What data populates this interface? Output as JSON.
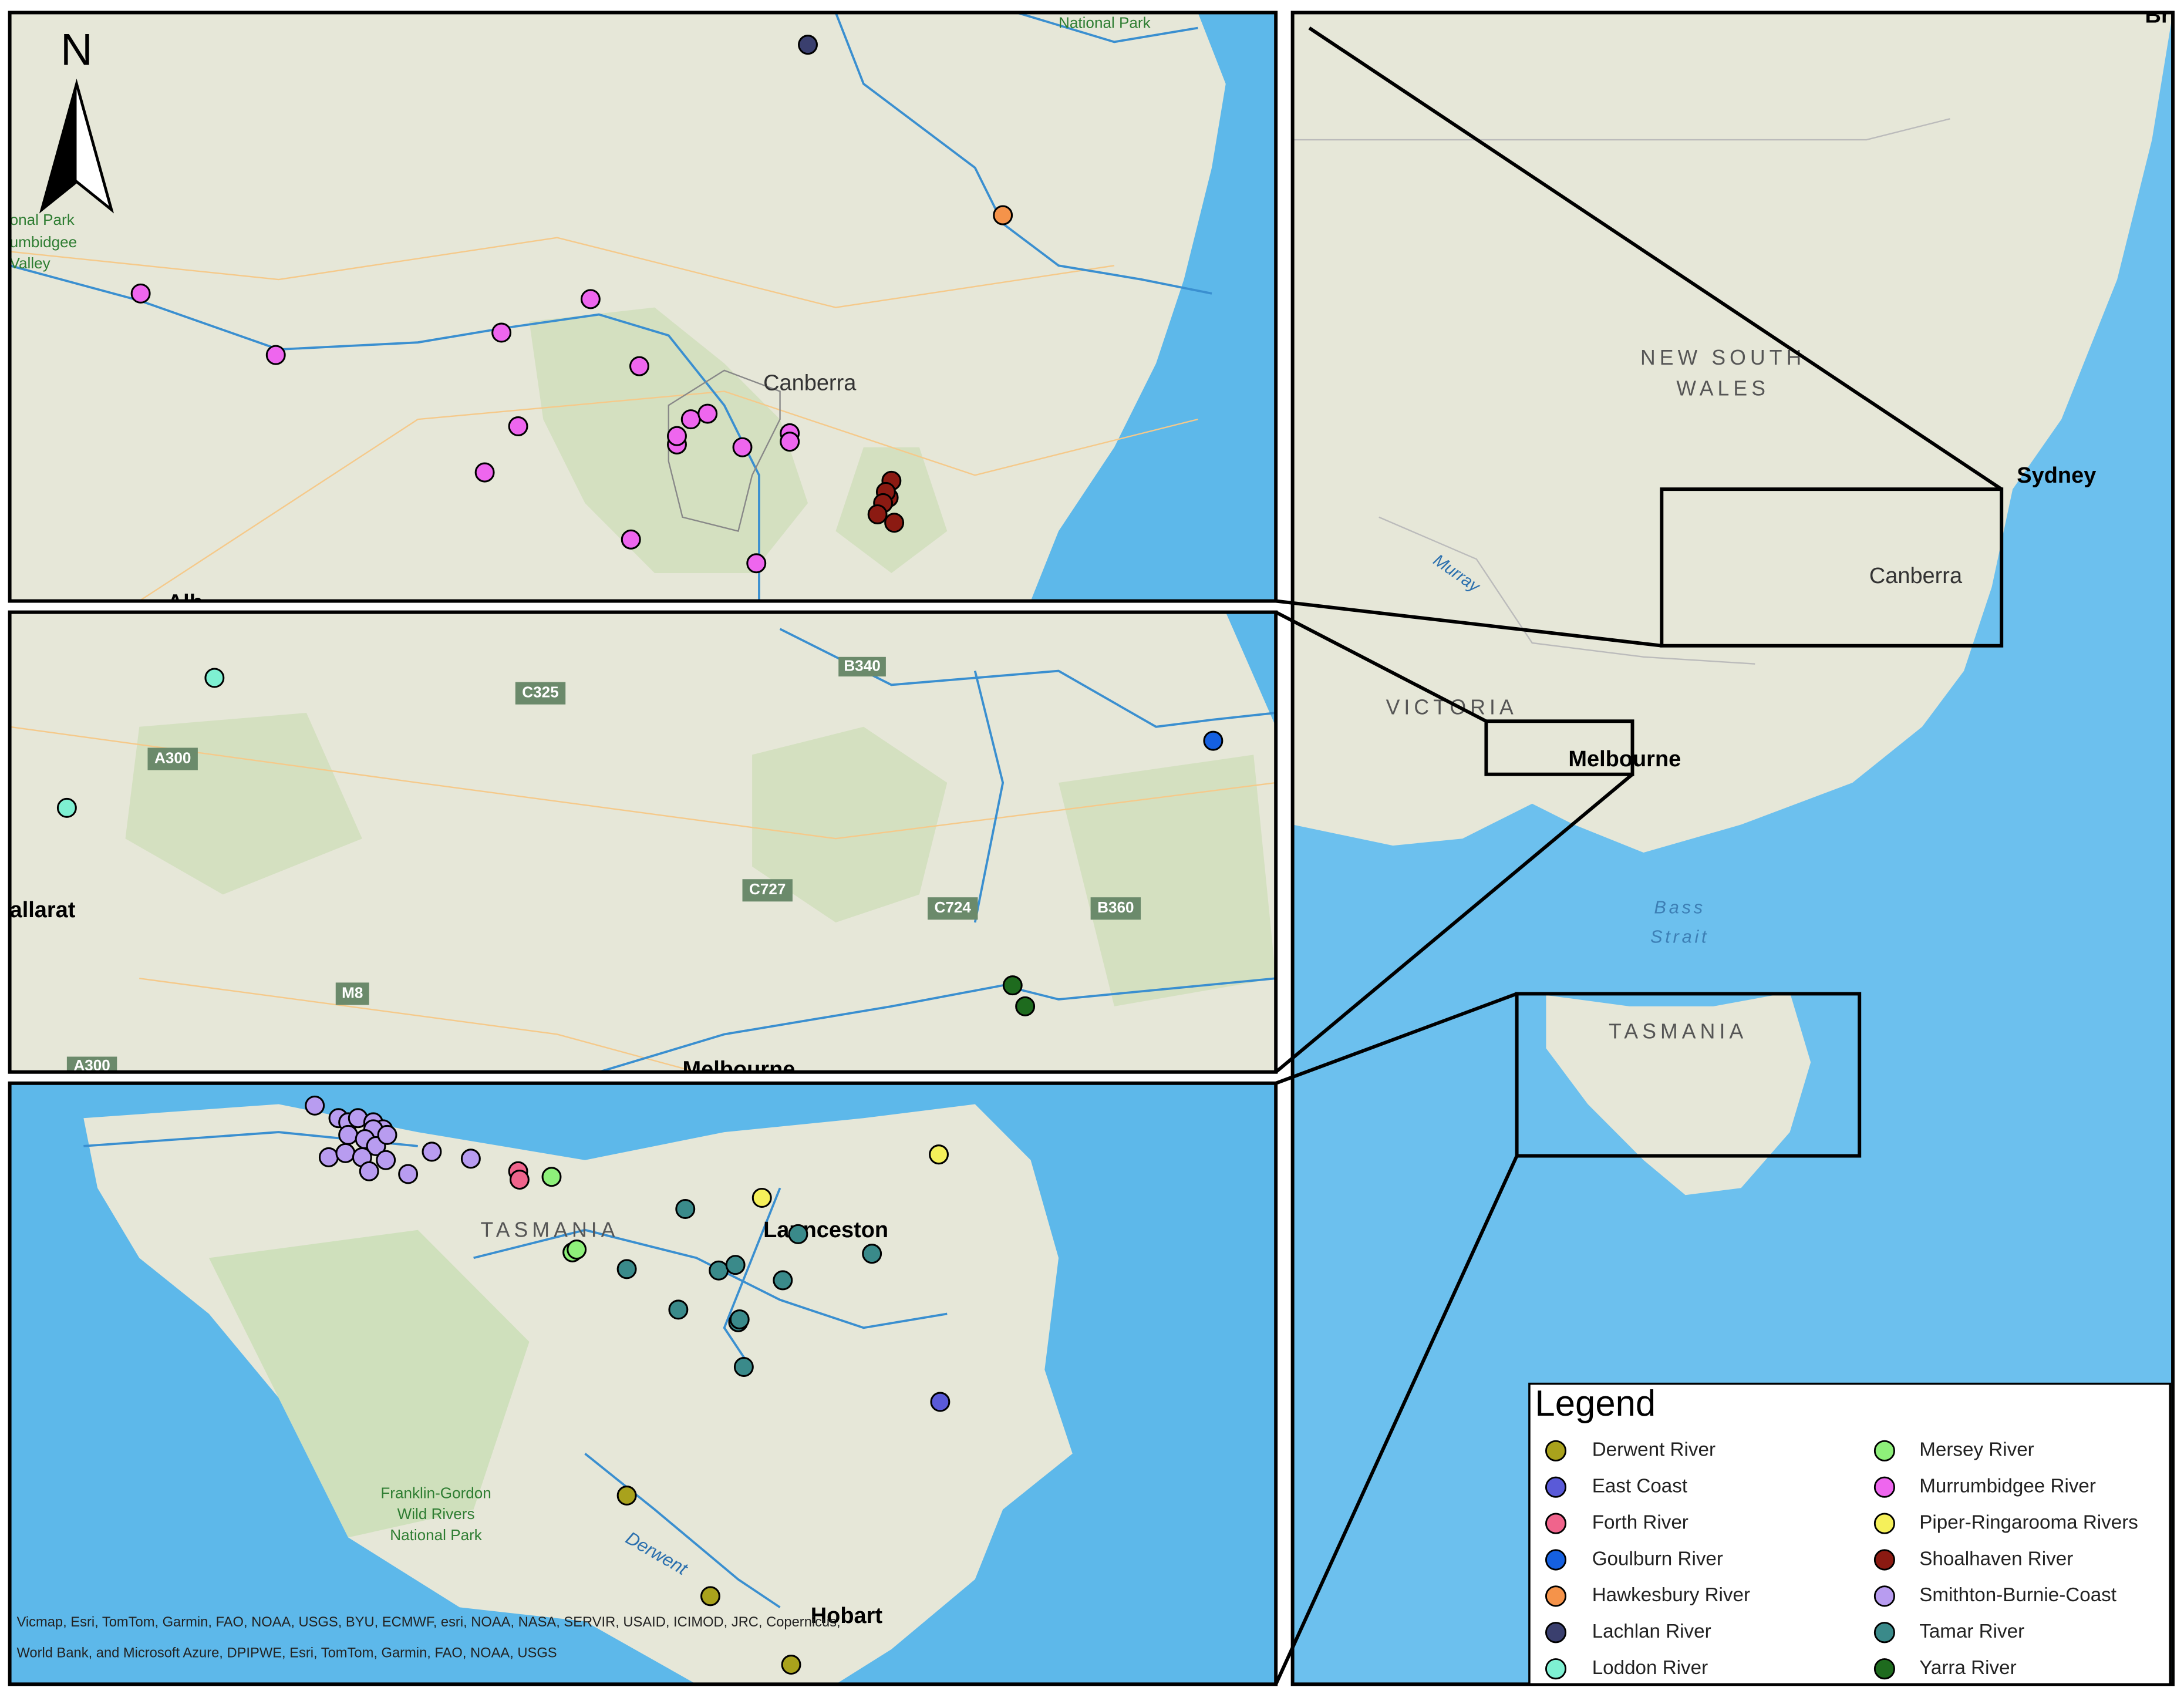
{
  "north_arrow": "N",
  "nsw_inset": {
    "labels": [
      "National Park",
      "onal Park",
      "umbidgee",
      "Valley",
      "Canberra",
      "Alb"
    ]
  },
  "vic_inset": {
    "labels": [
      "C325",
      "A300",
      "B340",
      "allarat",
      "C727",
      "C724",
      "B360",
      "M8",
      "A300",
      "Melbourne"
    ]
  },
  "tas_inset": {
    "labels": [
      "TASMANIA",
      "Launceston",
      "Derwent",
      "Hobart"
    ],
    "park": [
      "Franklin-Gordon",
      "Wild Rivers",
      "National Park"
    ],
    "attribution": [
      "Vicmap, Esri, TomTom, Garmin, FAO, NOAA, USGS, BYU, ECMWF, esri, NOAA, NASA, SERVIR, USAID, ICIMOD, JRC, Copernicus,",
      "World Bank, and Microsoft Azure, DPIPWE, Esri, TomTom, Garmin, FAO, NOAA, USGS"
    ]
  },
  "overview": {
    "nsw": [
      "NEW SOUTH",
      "WALES"
    ],
    "labels": [
      "Sydney",
      "Canberra",
      "Murray",
      "VICTORIA",
      "Melbourne",
      "TASMANIA",
      "Bri"
    ],
    "bass": [
      "Bass",
      "Strait"
    ]
  },
  "legend": {
    "title": "Legend",
    "items": [
      {
        "name": "Derwent River",
        "color": "#a9a21c"
      },
      {
        "name": "East Coast",
        "color": "#5a5ad8"
      },
      {
        "name": "Forth River",
        "color": "#f0648c"
      },
      {
        "name": "Goulburn River",
        "color": "#1560e0"
      },
      {
        "name": "Hawkesbury River",
        "color": "#f5934a"
      },
      {
        "name": "Lachlan River",
        "color": "#3a3f6e"
      },
      {
        "name": "Loddon River",
        "color": "#7ef0d2"
      },
      {
        "name": "Mersey River",
        "color": "#8ef07a"
      },
      {
        "name": "Murrumbidgee River",
        "color": "#ee66ee"
      },
      {
        "name": "Piper-Ringarooma Rivers",
        "color": "#f5f05a"
      },
      {
        "name": "Shoalhaven River",
        "color": "#8b1a12"
      },
      {
        "name": "Smithton-Burnie-Coast",
        "color": "#b89cf0"
      },
      {
        "name": "Tamar River",
        "color": "#3a8a8a"
      },
      {
        "name": "Yarra River",
        "color": "#1e6b1e"
      }
    ]
  }
}
